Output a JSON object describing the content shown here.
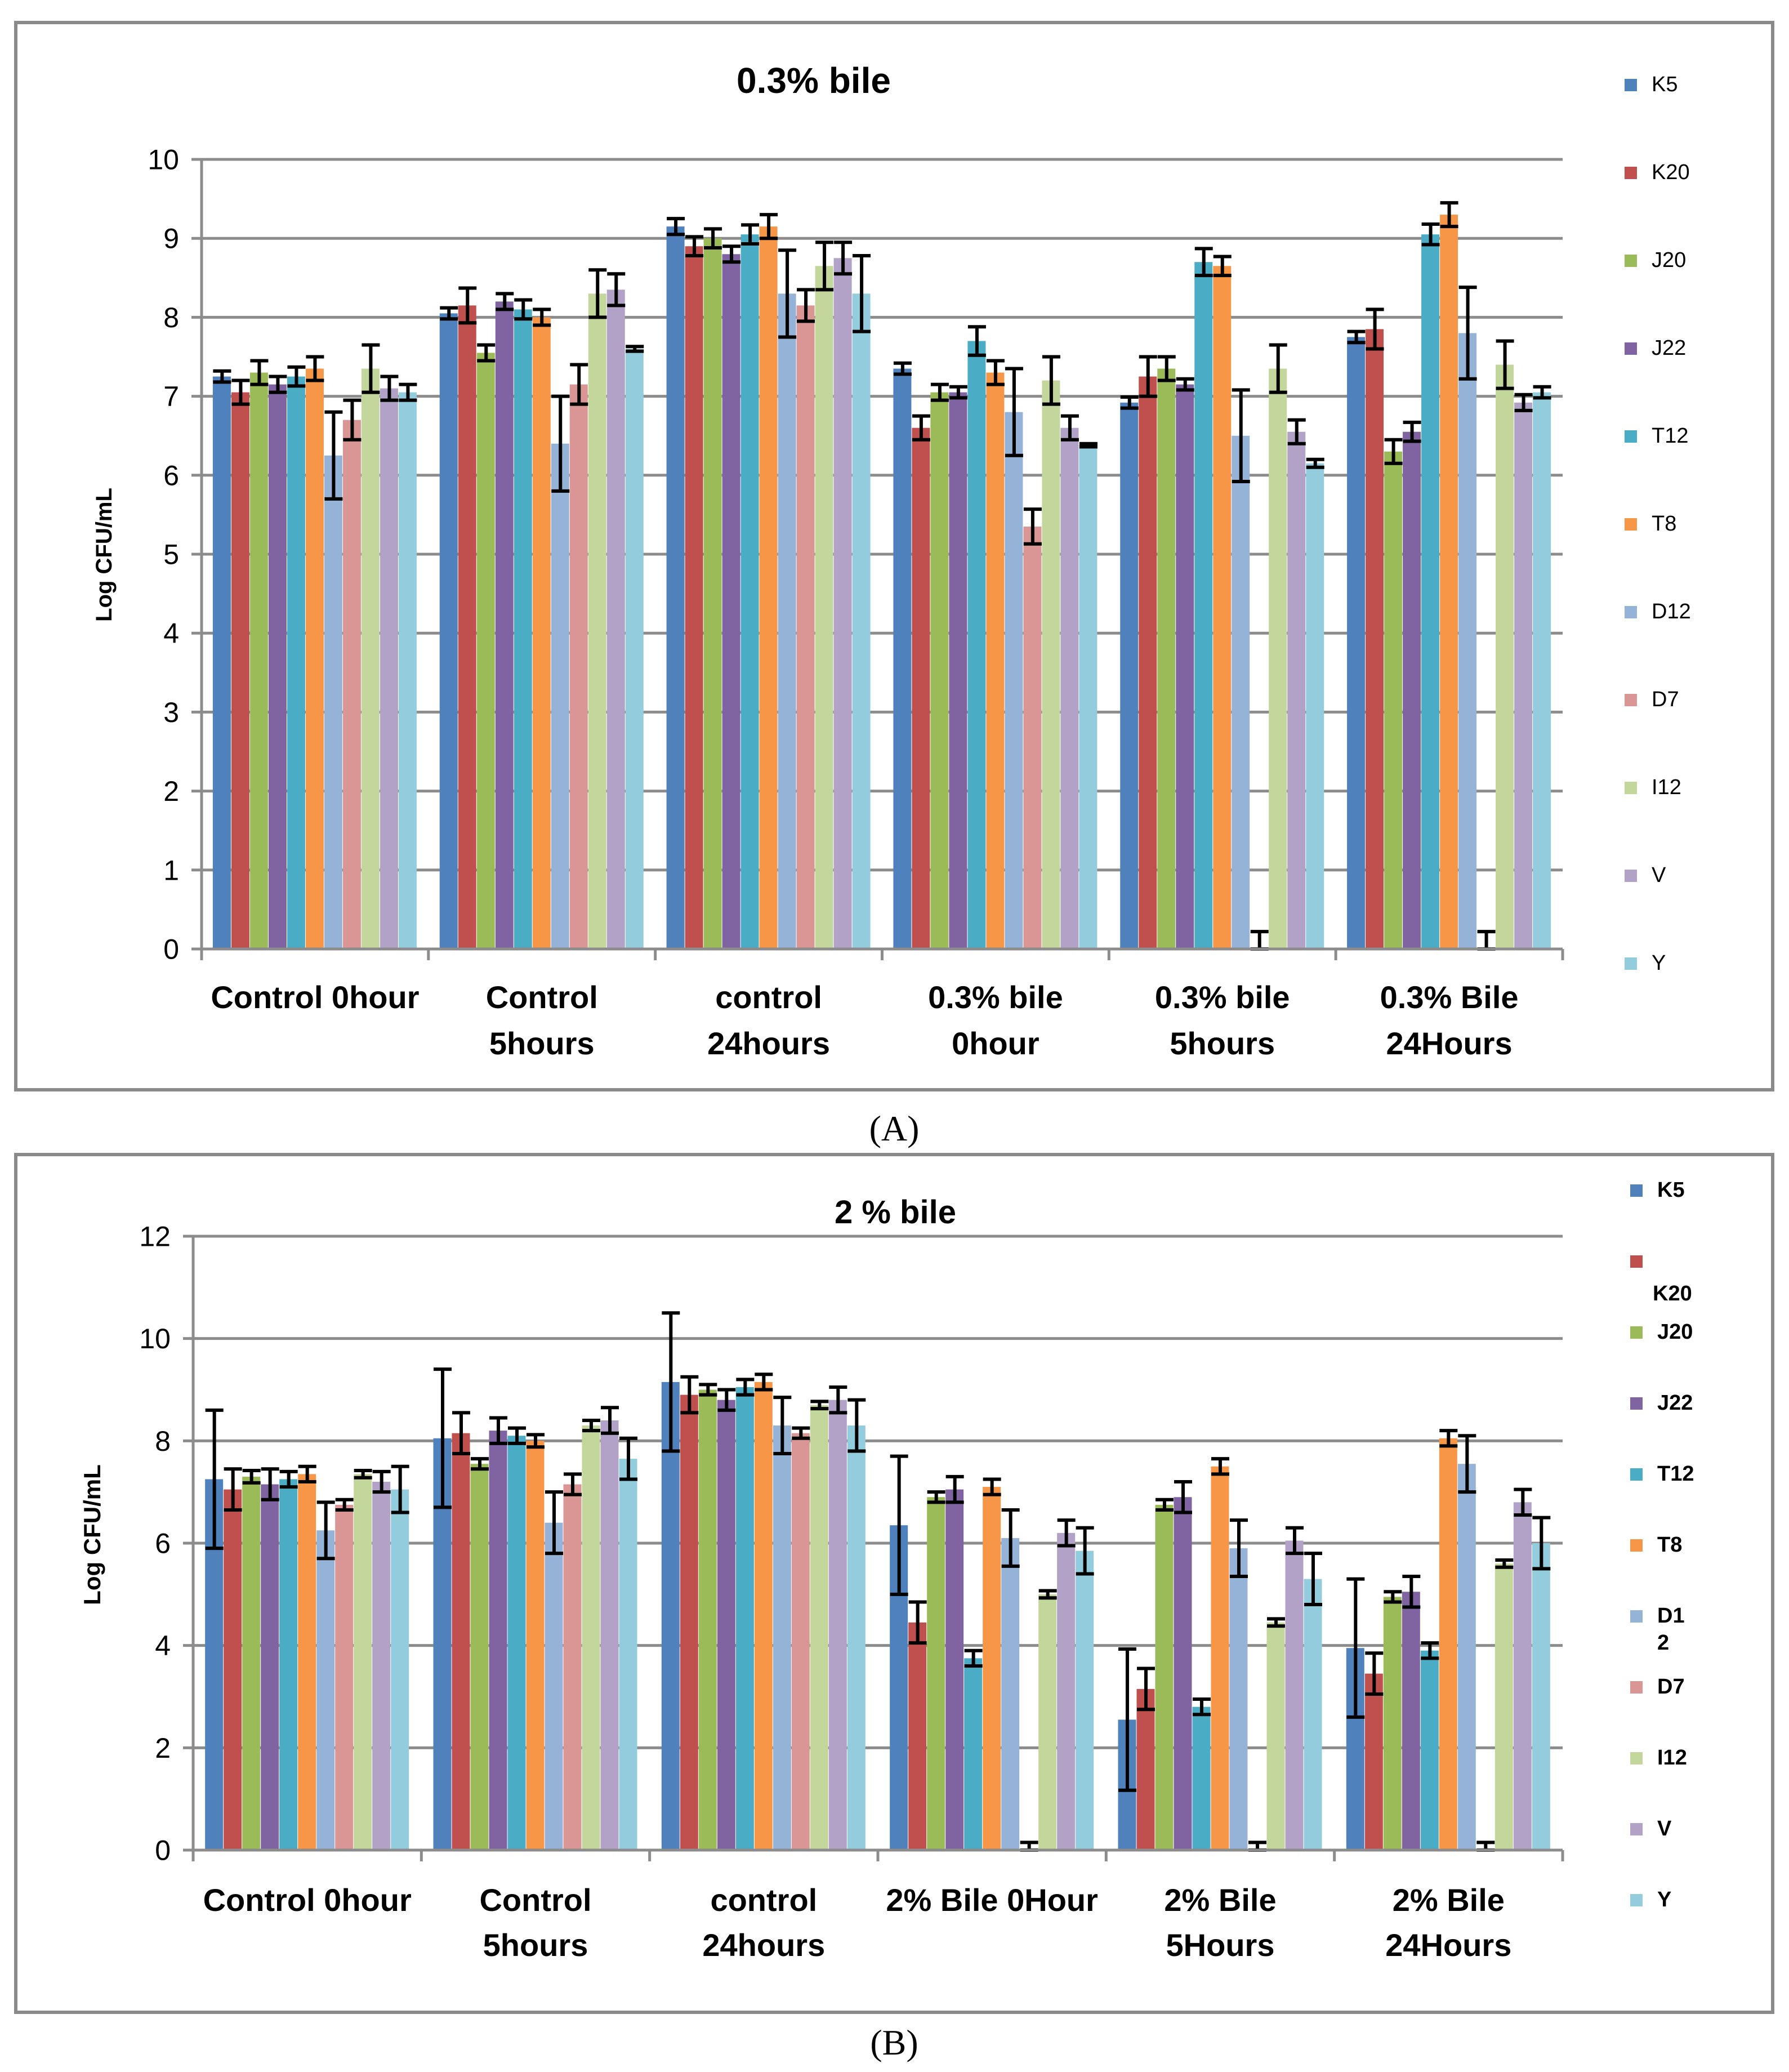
{
  "chart_data": [
    {
      "panel_label": "(A)",
      "type": "bar",
      "title": "0.3% bile",
      "ylabel": "Log  CFU/mL",
      "xlabel": "",
      "ylim": [
        0,
        10
      ],
      "yticks": [
        0,
        1,
        2,
        3,
        4,
        5,
        6,
        7,
        8,
        9,
        10
      ],
      "categories": [
        [
          "Control 0hour"
        ],
        [
          "Control",
          "5hours"
        ],
        [
          "control",
          "24hours"
        ],
        [
          "0.3% bile",
          "0hour"
        ],
        [
          "0.3% bile",
          "5hours"
        ],
        [
          "0.3% Bile",
          "24Hours"
        ]
      ],
      "series": [
        {
          "name": "K5",
          "color": "#4f81bd",
          "values": [
            7.25,
            8.05,
            9.15,
            7.35,
            6.92,
            7.75
          ],
          "errors": [
            0.07,
            0.07,
            0.1,
            0.07,
            0.07,
            0.07
          ]
        },
        {
          "name": "K20",
          "color": "#c0504d",
          "values": [
            7.05,
            8.15,
            8.9,
            6.6,
            7.25,
            7.85
          ],
          "errors": [
            0.15,
            0.22,
            0.12,
            0.15,
            0.25,
            0.25
          ]
        },
        {
          "name": "J20",
          "color": "#9bbb59",
          "values": [
            7.3,
            7.55,
            9.0,
            7.05,
            7.35,
            6.3
          ],
          "errors": [
            0.15,
            0.1,
            0.12,
            0.1,
            0.15,
            0.15
          ]
        },
        {
          "name": "J22",
          "color": "#8064a2",
          "values": [
            7.15,
            8.2,
            8.8,
            7.05,
            7.15,
            6.55
          ],
          "errors": [
            0.1,
            0.1,
            0.1,
            0.07,
            0.07,
            0.12
          ]
        },
        {
          "name": "T12",
          "color": "#4bacc6",
          "values": [
            7.25,
            8.1,
            9.05,
            7.7,
            8.7,
            9.05
          ],
          "errors": [
            0.12,
            0.12,
            0.12,
            0.18,
            0.17,
            0.13
          ]
        },
        {
          "name": "T8",
          "color": "#f79646",
          "values": [
            7.35,
            8.0,
            9.15,
            7.3,
            8.65,
            9.3
          ],
          "errors": [
            0.15,
            0.1,
            0.15,
            0.15,
            0.12,
            0.15
          ]
        },
        {
          "name": "D12",
          "color": "#95b3d7",
          "values": [
            6.25,
            6.4,
            8.3,
            6.8,
            6.5,
            7.8
          ],
          "errors": [
            0.55,
            0.6,
            0.55,
            0.55,
            0.58,
            0.58
          ]
        },
        {
          "name": "D7",
          "color": "#d99694",
          "values": [
            6.7,
            7.15,
            8.15,
            5.35,
            0.0,
            0.0
          ],
          "errors": [
            0.25,
            0.25,
            0.2,
            0.22,
            0.22,
            0.22
          ]
        },
        {
          "name": "I12",
          "color": "#c3d69b",
          "values": [
            7.35,
            8.3,
            8.65,
            7.2,
            7.35,
            7.4
          ],
          "errors": [
            0.3,
            0.3,
            0.3,
            0.3,
            0.3,
            0.3
          ]
        },
        {
          "name": "V",
          "color": "#b2a2c7",
          "values": [
            7.1,
            8.35,
            8.75,
            6.6,
            6.55,
            6.92
          ],
          "errors": [
            0.15,
            0.2,
            0.2,
            0.15,
            0.15,
            0.1
          ]
        },
        {
          "name": "Y",
          "color": "#93cddd",
          "values": [
            7.05,
            7.6,
            8.3,
            6.38,
            6.15,
            7.05
          ],
          "errors": [
            0.1,
            0.03,
            0.48,
            0.02,
            0.05,
            0.07
          ]
        }
      ]
    },
    {
      "panel_label": "(B)",
      "type": "bar",
      "title": "2 % bile",
      "ylabel": "Log CFU/mL",
      "xlabel": "",
      "ylim": [
        0,
        12
      ],
      "yticks": [
        0,
        2,
        4,
        6,
        8,
        10,
        12
      ],
      "categories": [
        [
          "Control 0hour"
        ],
        [
          "Control",
          "5hours"
        ],
        [
          "control",
          "24hours"
        ],
        [
          "2% Bile 0Hour"
        ],
        [
          "2% Bile",
          "5Hours"
        ],
        [
          "2% Bile",
          "24Hours"
        ]
      ],
      "legend_labels": [
        "K5",
        "K20",
        "J20",
        "J22",
        "T12",
        "T8",
        "D1\n2",
        "D7",
        "I12",
        "V",
        "Y"
      ],
      "series": [
        {
          "name": "K5",
          "color": "#4f81bd",
          "values": [
            7.25,
            8.05,
            9.15,
            6.35,
            2.55,
            3.95
          ],
          "errors": [
            1.35,
            1.35,
            1.35,
            1.35,
            1.38,
            1.35
          ]
        },
        {
          "name": "K20",
          "color": "#c0504d",
          "values": [
            7.05,
            8.15,
            8.9,
            4.45,
            3.15,
            3.45
          ],
          "errors": [
            0.4,
            0.4,
            0.35,
            0.4,
            0.4,
            0.4
          ]
        },
        {
          "name": "J20",
          "color": "#9bbb59",
          "values": [
            7.3,
            7.55,
            9.0,
            6.9,
            6.75,
            4.95
          ],
          "errors": [
            0.12,
            0.1,
            0.1,
            0.1,
            0.1,
            0.1
          ]
        },
        {
          "name": "J22",
          "color": "#8064a2",
          "values": [
            7.15,
            8.2,
            8.8,
            7.05,
            6.9,
            5.05
          ],
          "errors": [
            0.3,
            0.25,
            0.2,
            0.25,
            0.3,
            0.3
          ]
        },
        {
          "name": "T12",
          "color": "#4bacc6",
          "values": [
            7.25,
            8.1,
            9.05,
            3.75,
            2.8,
            3.9
          ],
          "errors": [
            0.15,
            0.15,
            0.15,
            0.15,
            0.15,
            0.15
          ]
        },
        {
          "name": "T8",
          "color": "#f79646",
          "values": [
            7.35,
            8.0,
            9.15,
            7.1,
            7.5,
            8.05
          ],
          "errors": [
            0.15,
            0.12,
            0.15,
            0.15,
            0.15,
            0.15
          ]
        },
        {
          "name": "D12",
          "color": "#95b3d7",
          "values": [
            6.25,
            6.4,
            8.3,
            6.1,
            5.9,
            7.55
          ],
          "errors": [
            0.55,
            0.6,
            0.55,
            0.55,
            0.55,
            0.55
          ]
        },
        {
          "name": "D7",
          "color": "#d99694",
          "values": [
            6.75,
            7.15,
            8.15,
            0.0,
            0.0,
            0.0
          ],
          "errors": [
            0.1,
            0.2,
            0.1,
            0.15,
            0.15,
            0.15
          ]
        },
        {
          "name": "I12",
          "color": "#c3d69b",
          "values": [
            7.35,
            8.3,
            8.7,
            5.0,
            4.45,
            5.6
          ],
          "errors": [
            0.07,
            0.1,
            0.07,
            0.07,
            0.07,
            0.07
          ]
        },
        {
          "name": "V",
          "color": "#b2a2c7",
          "values": [
            7.2,
            8.4,
            8.8,
            6.2,
            6.05,
            6.8
          ],
          "errors": [
            0.2,
            0.25,
            0.25,
            0.25,
            0.25,
            0.25
          ]
        },
        {
          "name": "Y",
          "color": "#93cddd",
          "values": [
            7.05,
            7.65,
            8.3,
            5.85,
            5.3,
            6.0
          ],
          "errors": [
            0.45,
            0.4,
            0.5,
            0.45,
            0.5,
            0.5
          ]
        }
      ]
    }
  ]
}
